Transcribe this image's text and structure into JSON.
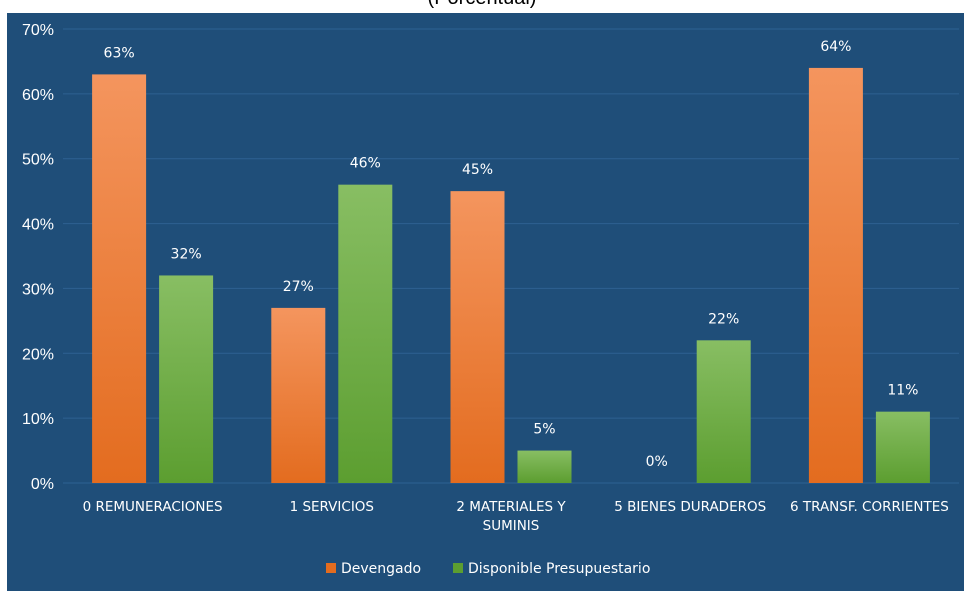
{
  "title": "(Porcentual)",
  "chart_data": {
    "type": "bar",
    "categories": [
      [
        "0  REMUNERACIONES"
      ],
      [
        "1  SERVICIOS"
      ],
      [
        "2  MATERIALES Y",
        "SUMINIS"
      ],
      [
        "5  BIENES DURADEROS"
      ],
      [
        "6  TRANSF. CORRIENTES"
      ]
    ],
    "series": [
      {
        "name": "Devengado",
        "values": [
          63,
          27,
          45,
          0,
          64
        ],
        "labels": [
          "63%",
          "27%",
          "45%",
          "0%",
          "64%"
        ],
        "color_top": "#F4955E",
        "color_bottom": "#E36C1F"
      },
      {
        "name": "Disponible Presupuestario",
        "values": [
          32,
          46,
          5,
          22,
          11
        ],
        "labels": [
          "32%",
          "46%",
          "5%",
          "22%",
          "11%"
        ],
        "color_top": "#88BE63",
        "color_bottom": "#5C9E30"
      }
    ],
    "y_ticks": [
      "0%",
      "10%",
      "20%",
      "30%",
      "40%",
      "50%",
      "60%",
      "70%"
    ],
    "ylim": [
      0,
      70
    ],
    "y_unit": "%",
    "grid": true,
    "legend_position": "bottom-center",
    "background": "#1F4E79",
    "gridline_color": "#2E6192"
  }
}
